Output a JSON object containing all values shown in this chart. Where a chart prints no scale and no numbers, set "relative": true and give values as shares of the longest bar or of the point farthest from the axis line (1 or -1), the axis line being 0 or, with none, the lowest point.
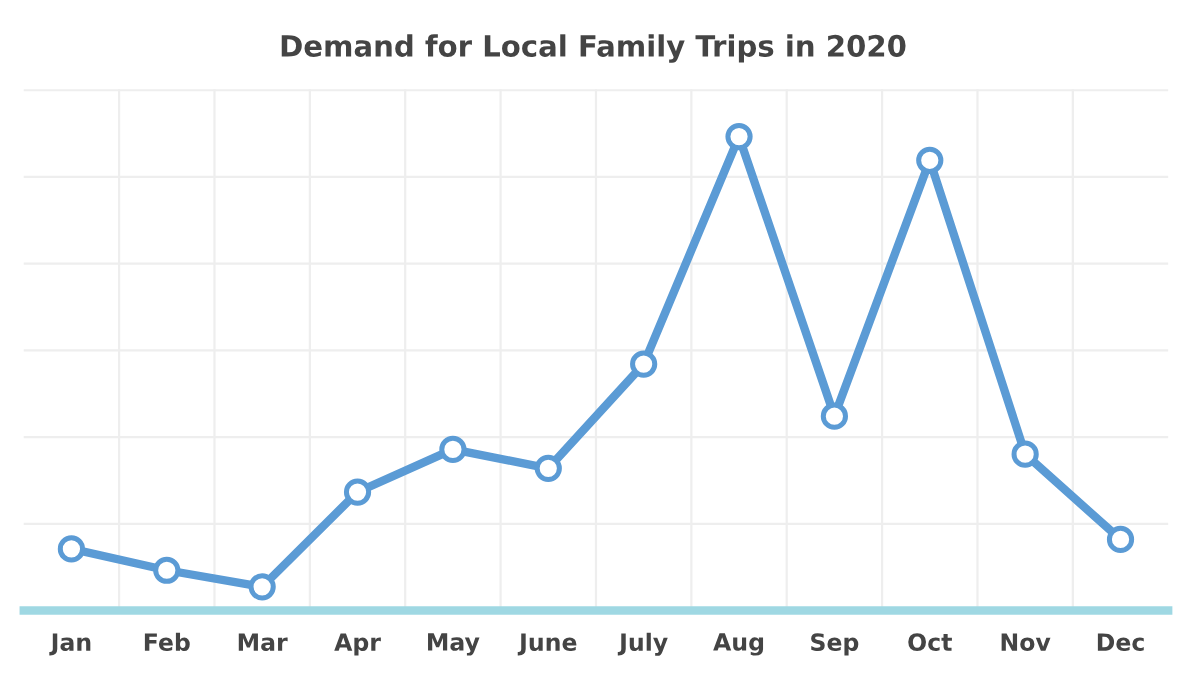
{
  "chart_data": {
    "type": "line",
    "title": "Demand for Local Family Trips in 2020",
    "categories": [
      "Jan",
      "Feb",
      "Mar",
      "Apr",
      "May",
      "June",
      "July",
      "Aug",
      "Sep",
      "Oct",
      "Nov",
      "Dec"
    ],
    "relative": true,
    "series": [
      {
        "color": "#5b9bd5",
        "values": [
          0.13,
          0.085,
          0.05,
          0.25,
          0.34,
          0.3,
          0.52,
          1,
          0.41,
          0.95,
          0.33,
          0.15
        ]
      }
    ],
    "marker": "circle",
    "line_style": "solid",
    "grid": true
  }
}
